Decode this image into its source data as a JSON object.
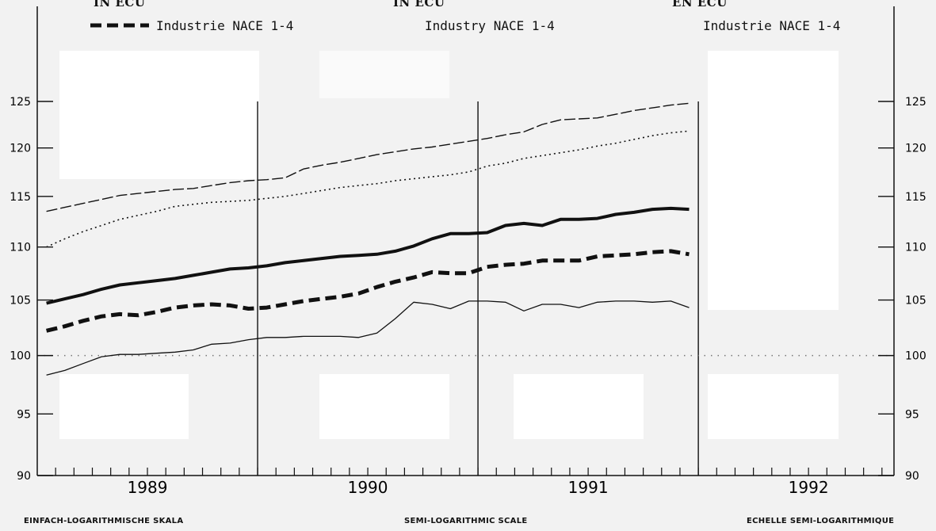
{
  "headers": [
    {
      "unit": "IN ECU",
      "series_label": "Industrie NACE 1-4"
    },
    {
      "unit": "IN ECU",
      "series_label": "Industry NACE 1-4"
    },
    {
      "unit": "EN ECU",
      "series_label": "Industrie NACE 1-4"
    }
  ],
  "footers": {
    "de": "EINFACH-LOGARITHMISCHE SKALA",
    "en": "SEMI-LOGARITHMIC SCALE",
    "fr": "ECHELLE SEMI-LOGARITHMIQUE"
  },
  "chart_data": {
    "type": "line",
    "scale": "semi-logarithmic",
    "ylim": [
      90,
      125
    ],
    "yticks": [
      "90",
      "95",
      "100",
      "105",
      "110",
      "115",
      "120",
      "125"
    ],
    "years": [
      "1989",
      "1990",
      "1991",
      "1992"
    ],
    "reference_line": 100,
    "x_unit": "month index from start of 1989 (1-36)",
    "series": [
      {
        "style": "thin dashed",
        "values": [
          113.5,
          113.9,
          114.3,
          114.7,
          115.1,
          115.3,
          115.5,
          115.7,
          115.8,
          116.1,
          116.4,
          116.6,
          116.7,
          116.9,
          117.8,
          118.2,
          118.5,
          118.9,
          119.3,
          119.6,
          119.9,
          120.1,
          120.4,
          120.7,
          121.0,
          121.4,
          121.7,
          122.5,
          123.0,
          123.1,
          123.2,
          123.6,
          124.0,
          124.3,
          124.6,
          124.8
        ]
      },
      {
        "style": "dotted",
        "values": [
          110.0,
          110.8,
          111.5,
          112.1,
          112.7,
          113.1,
          113.5,
          114.0,
          114.2,
          114.4,
          114.5,
          114.6,
          114.8,
          115.0,
          115.3,
          115.6,
          115.9,
          116.1,
          116.3,
          116.6,
          116.8,
          117.0,
          117.2,
          117.5,
          118.1,
          118.4,
          118.9,
          119.2,
          119.5,
          119.8,
          120.2,
          120.5,
          120.9,
          121.3,
          121.6,
          121.8
        ]
      },
      {
        "style": "thick solid",
        "values": [
          104.7,
          105.1,
          105.5,
          106.0,
          106.4,
          106.6,
          106.8,
          107.0,
          107.3,
          107.6,
          107.9,
          108.0,
          108.2,
          108.5,
          108.7,
          108.9,
          109.1,
          109.2,
          109.3,
          109.6,
          110.1,
          110.8,
          111.3,
          111.3,
          111.4,
          112.1,
          112.3,
          112.1,
          112.7,
          112.7,
          112.8,
          113.2,
          113.4,
          113.7,
          113.8,
          113.7
        ]
      },
      {
        "name": "Industrie NACE 1-4",
        "style": "thick dashed",
        "values": [
          102.2,
          102.6,
          103.1,
          103.5,
          103.7,
          103.6,
          103.9,
          104.3,
          104.5,
          104.6,
          104.5,
          104.2,
          104.3,
          104.6,
          104.9,
          105.1,
          105.3,
          105.6,
          106.2,
          106.7,
          107.1,
          107.6,
          107.5,
          107.5,
          108.1,
          108.3,
          108.4,
          108.7,
          108.7,
          108.7,
          109.1,
          109.2,
          109.3,
          109.5,
          109.6,
          109.3
        ]
      },
      {
        "style": "thin solid",
        "values": [
          98.3,
          98.7,
          99.3,
          99.9,
          100.1,
          100.1,
          100.2,
          100.3,
          100.5,
          101.0,
          101.1,
          101.4,
          101.6,
          101.6,
          101.7,
          101.7,
          101.7,
          101.6,
          102.0,
          103.3,
          104.8,
          104.6,
          104.2,
          104.9,
          104.9,
          104.8,
          104.0,
          104.6,
          104.6,
          104.3,
          104.8,
          104.9,
          104.9,
          104.8,
          104.9,
          104.3
        ]
      }
    ]
  }
}
